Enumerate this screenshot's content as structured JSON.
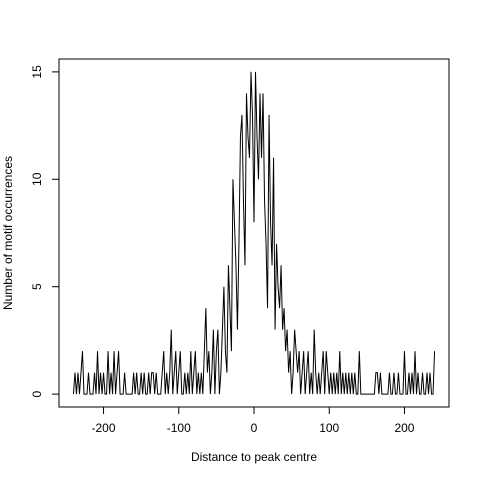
{
  "chart_data": {
    "type": "line",
    "xlabel": "Distance to peak centre",
    "ylabel": "Number of motif occurrences",
    "x": [
      -240,
      -238,
      -236,
      -234,
      -232,
      -230,
      -228,
      -226,
      -224,
      -222,
      -220,
      -218,
      -216,
      -214,
      -212,
      -210,
      -208,
      -206,
      -204,
      -202,
      -200,
      -198,
      -196,
      -194,
      -192,
      -190,
      -188,
      -186,
      -184,
      -182,
      -180,
      -178,
      -176,
      -174,
      -172,
      -170,
      -168,
      -166,
      -164,
      -162,
      -160,
      -158,
      -156,
      -154,
      -152,
      -150,
      -148,
      -146,
      -144,
      -142,
      -140,
      -138,
      -136,
      -134,
      -132,
      -130,
      -128,
      -126,
      -124,
      -122,
      -120,
      -118,
      -116,
      -114,
      -112,
      -110,
      -108,
      -106,
      -104,
      -102,
      -100,
      -98,
      -96,
      -94,
      -92,
      -90,
      -88,
      -86,
      -84,
      -82,
      -80,
      -78,
      -76,
      -74,
      -72,
      -70,
      -68,
      -66,
      -64,
      -62,
      -60,
      -58,
      -56,
      -54,
      -52,
      -50,
      -48,
      -46,
      -44,
      -42,
      -40,
      -38,
      -36,
      -34,
      -32,
      -30,
      -28,
      -26,
      -24,
      -22,
      -20,
      -18,
      -16,
      -14,
      -12,
      -10,
      -8,
      -6,
      -4,
      -2,
      0,
      2,
      4,
      6,
      8,
      10,
      12,
      14,
      16,
      18,
      20,
      22,
      24,
      26,
      28,
      30,
      32,
      34,
      36,
      38,
      40,
      42,
      44,
      46,
      48,
      50,
      52,
      54,
      56,
      58,
      60,
      62,
      64,
      66,
      68,
      70,
      72,
      74,
      76,
      78,
      80,
      82,
      84,
      86,
      88,
      90,
      92,
      94,
      96,
      98,
      100,
      102,
      104,
      106,
      108,
      110,
      112,
      114,
      116,
      118,
      120,
      122,
      124,
      126,
      128,
      130,
      132,
      134,
      136,
      138,
      140,
      142,
      144,
      146,
      148,
      150,
      152,
      154,
      156,
      158,
      160,
      162,
      164,
      166,
      168,
      170,
      172,
      174,
      176,
      178,
      180,
      182,
      184,
      186,
      188,
      190,
      192,
      194,
      196,
      198,
      200,
      202,
      204,
      206,
      208,
      210,
      212,
      214,
      216,
      218,
      220,
      222,
      224,
      226,
      228,
      230,
      232,
      234,
      236,
      238,
      240
    ],
    "series": [
      {
        "color": "#000000",
        "values": [
          0,
          1,
          0,
          1,
          0,
          1,
          2,
          0,
          0,
          0,
          1,
          0,
          0,
          0,
          1,
          0,
          2,
          0,
          1,
          0,
          1,
          0,
          0,
          2,
          0,
          1,
          0,
          2,
          0,
          1,
          2,
          0,
          0,
          0,
          1,
          0,
          0,
          0,
          0,
          0,
          1,
          0,
          1,
          0,
          0,
          1,
          0,
          1,
          0,
          0,
          1,
          0,
          1,
          1,
          0,
          1,
          0,
          0,
          0,
          1,
          2,
          0,
          1,
          0,
          1,
          3,
          0,
          1,
          2,
          0,
          1,
          2,
          0,
          0,
          1,
          0,
          1,
          0,
          2,
          0,
          1,
          2,
          0,
          1,
          0,
          1,
          0,
          2,
          4,
          1,
          2,
          0,
          1,
          3,
          0,
          2,
          3,
          0,
          1,
          3,
          5,
          2,
          1,
          6,
          4,
          2,
          10,
          8,
          6,
          3,
          7,
          12,
          13,
          9,
          6,
          14,
          12,
          11,
          15,
          13,
          8,
          15,
          12,
          10,
          14,
          11,
          14,
          9,
          7,
          4,
          13,
          8,
          6,
          11,
          3,
          7,
          5,
          4,
          6,
          3,
          4,
          2,
          3,
          1,
          2,
          0,
          1,
          3,
          2,
          1,
          2,
          0,
          1,
          2,
          0,
          1,
          2,
          0,
          1,
          0,
          3,
          1,
          0,
          1,
          0,
          1,
          2,
          0,
          2,
          1,
          0,
          1,
          0,
          1,
          0,
          1,
          0,
          2,
          0,
          1,
          0,
          1,
          0,
          1,
          0,
          1,
          0,
          1,
          0,
          0,
          2,
          0,
          0,
          0,
          0,
          0,
          0,
          0,
          0,
          0,
          0,
          1,
          1,
          0,
          1,
          0,
          0,
          0,
          0,
          0,
          1,
          0,
          0,
          1,
          0,
          0,
          1,
          0,
          0,
          0,
          2,
          0,
          0,
          1,
          0,
          1,
          0,
          2,
          0,
          1,
          0,
          0,
          1,
          0,
          0,
          1,
          0,
          1,
          0,
          0,
          2
        ]
      }
    ],
    "xlim": [
      -259.2,
      259.2
    ],
    "ylim": [
      -0.6,
      15.6
    ],
    "xticks": [
      -200,
      -100,
      0,
      100,
      200
    ],
    "yticks": [
      0,
      5,
      10,
      15
    ]
  }
}
